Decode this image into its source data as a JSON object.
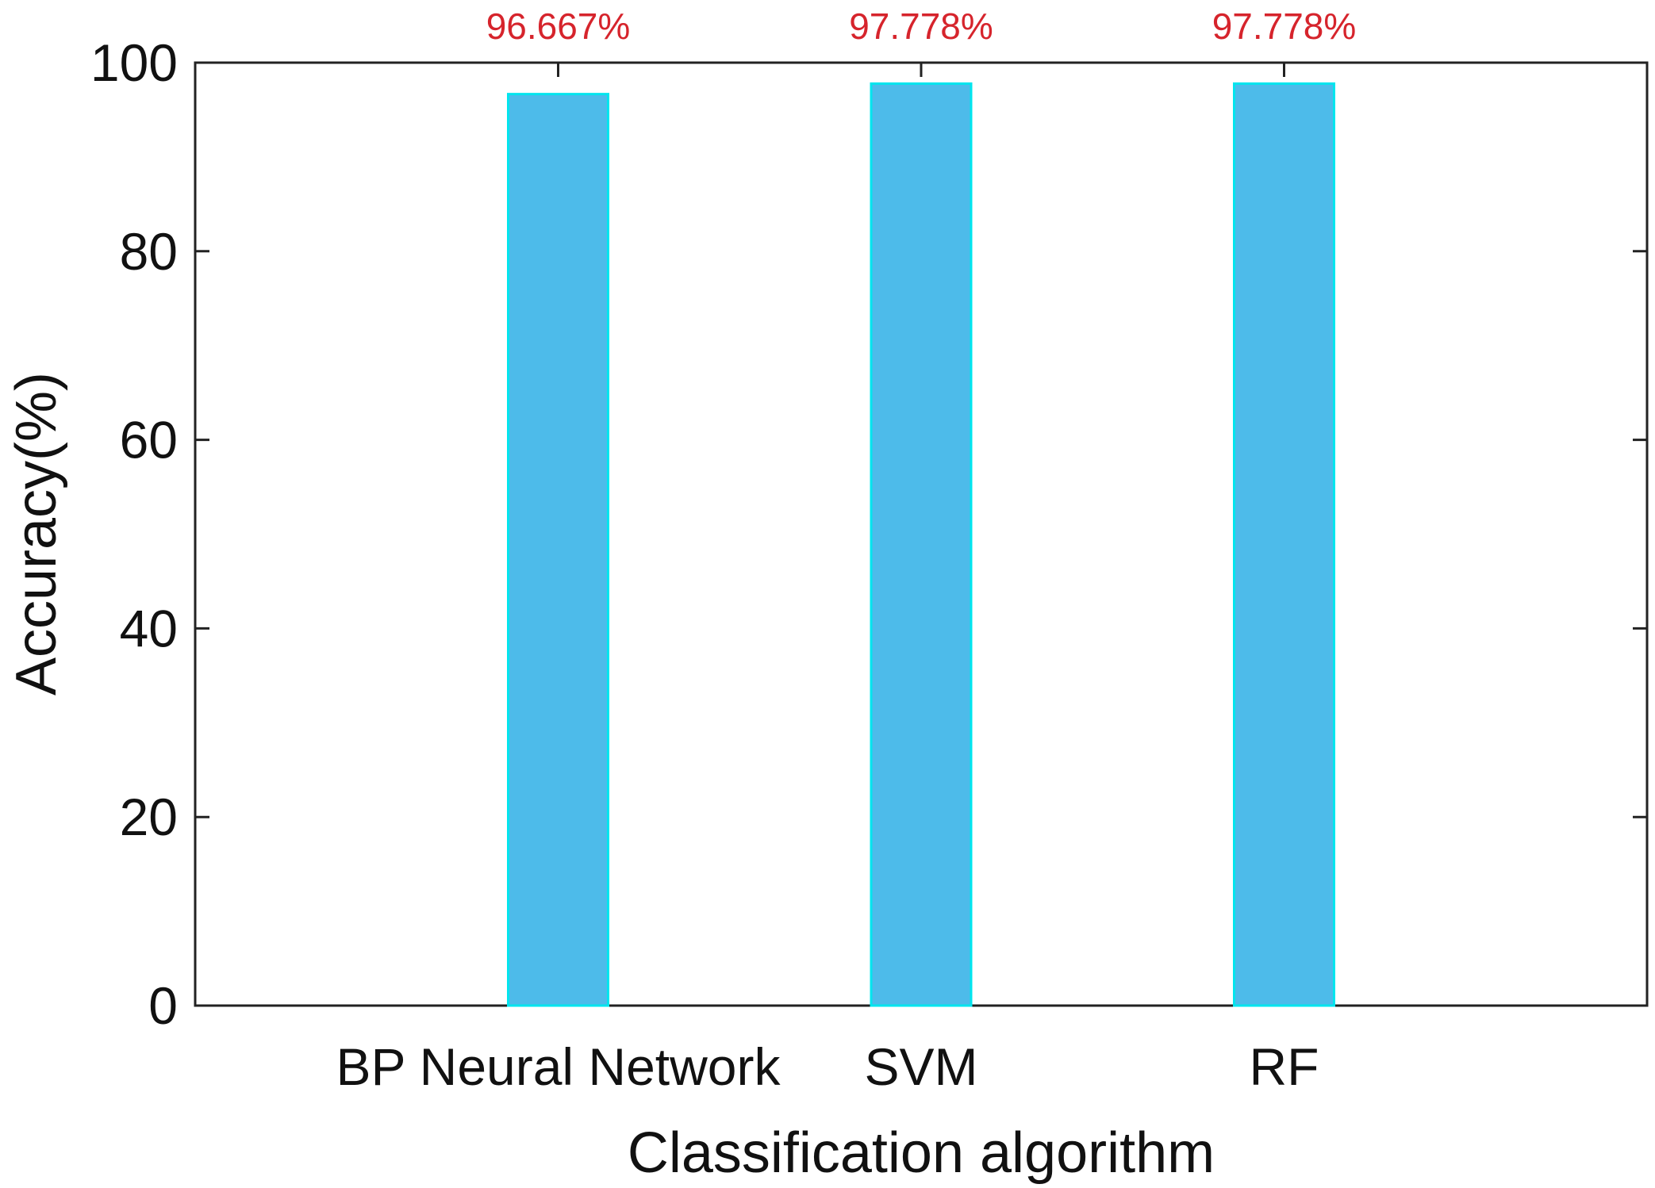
{
  "chart_data": {
    "type": "bar",
    "categories": [
      "BP Neural Network",
      "SVM",
      "RF"
    ],
    "values": [
      96.667,
      97.778,
      97.778
    ],
    "data_labels": [
      "96.667%",
      "97.778%",
      "97.778%"
    ],
    "title": "",
    "xlabel": "Classification algorithm",
    "ylabel": "Accuracy(%)",
    "ylim": [
      0,
      100
    ],
    "yticks": [
      "0",
      "20",
      "40",
      "60",
      "80",
      "100"
    ],
    "grid": false,
    "legend": "none",
    "colors": {
      "bar_fill": "#4dbbea",
      "bar_edge": "#00e5ee",
      "data_label": "#d6242c",
      "axis": "#222222"
    }
  }
}
